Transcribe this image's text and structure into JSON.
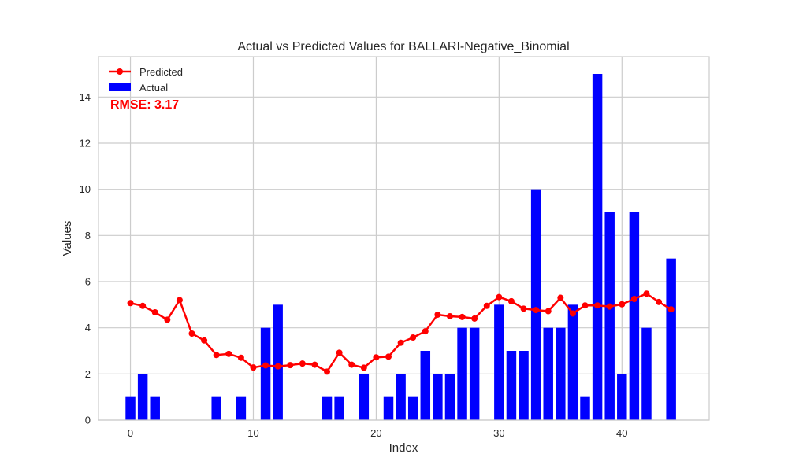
{
  "chart_data": {
    "type": "bar+line",
    "title": "Actual vs Predicted Values for BALLARI-Negative_Binomial",
    "xlabel": "Index",
    "ylabel": "Values",
    "xlim": [
      -2.6,
      47.1
    ],
    "ylim": [
      0,
      15.75
    ],
    "xticks": [
      0,
      10,
      20,
      30,
      40
    ],
    "yticks": [
      0,
      2,
      4,
      6,
      8,
      10,
      12,
      14
    ],
    "grid": true,
    "legend_position": "top-left",
    "annotation": "RMSE: 3.17",
    "colors": {
      "actual": "#0000ff",
      "predicted": "#ff0000",
      "annotation": "#ff0000",
      "grid": "#cccccc",
      "frame": "#cccccc"
    },
    "x": [
      0,
      1,
      2,
      3,
      4,
      5,
      6,
      7,
      8,
      9,
      10,
      11,
      12,
      13,
      14,
      15,
      16,
      17,
      18,
      19,
      20,
      21,
      22,
      23,
      24,
      25,
      26,
      27,
      28,
      29,
      30,
      31,
      32,
      33,
      34,
      35,
      36,
      37,
      38,
      39,
      40,
      41,
      42,
      43,
      44
    ],
    "series": [
      {
        "name": "Predicted",
        "kind": "line",
        "values": [
          5.07,
          4.95,
          4.67,
          4.35,
          5.2,
          3.75,
          3.45,
          2.82,
          2.87,
          2.7,
          2.28,
          2.37,
          2.33,
          2.38,
          2.45,
          2.4,
          2.1,
          2.92,
          2.4,
          2.27,
          2.72,
          2.75,
          3.35,
          3.58,
          3.85,
          4.57,
          4.5,
          4.47,
          4.4,
          4.95,
          5.33,
          5.15,
          4.83,
          4.77,
          4.72,
          5.3,
          4.62,
          4.97,
          4.97,
          4.92,
          5.02,
          5.25,
          5.48,
          5.12,
          4.8
        ]
      },
      {
        "name": "Actual",
        "kind": "bar",
        "values": [
          1,
          2,
          1,
          0,
          0,
          0,
          0,
          1,
          0,
          1,
          0,
          4,
          5,
          0,
          0,
          0,
          1,
          1,
          0,
          2,
          0,
          1,
          2,
          1,
          3,
          2,
          2,
          4,
          4,
          0,
          5,
          3,
          3,
          10,
          4,
          4,
          5,
          1,
          15,
          9,
          2,
          9,
          4,
          0,
          7
        ]
      }
    ]
  }
}
